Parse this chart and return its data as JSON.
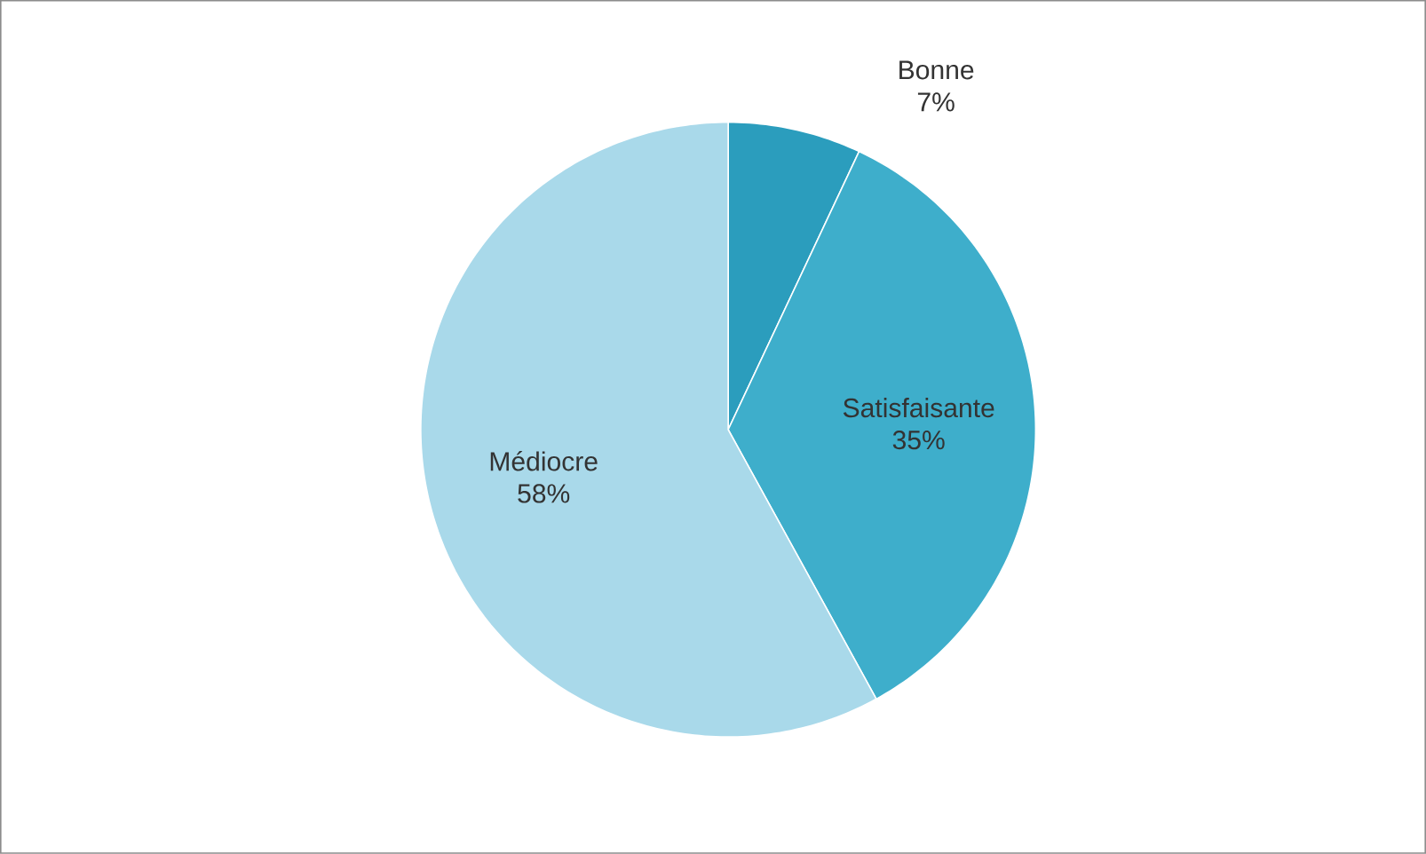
{
  "chart_data": {
    "type": "pie",
    "categories": [
      "Bonne",
      "Satisfaisante",
      "Médiocre"
    ],
    "values": [
      7,
      35,
      58
    ],
    "value_labels": [
      "7%",
      "35%",
      "58%"
    ],
    "colors": [
      "#2b9dbd",
      "#3eaecb",
      "#a9d9ea"
    ]
  }
}
